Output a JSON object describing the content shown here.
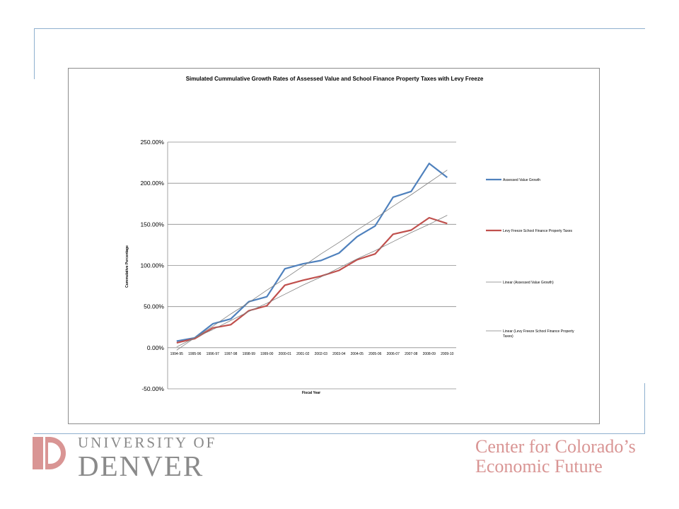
{
  "chart_data": {
    "type": "line",
    "title": "Simulated Cummulative Growth Rates of Assessed Value and School Finance Property Taxes with Levy Freeze",
    "xlabel": "Fiscal Year",
    "ylabel": "Cummulative Percentage",
    "categories": [
      "1994-95",
      "1995-96",
      "1996-97",
      "1997-98",
      "1998-99",
      "1999-00",
      "2000-01",
      "2001-02",
      "2002-03",
      "2003-04",
      "2004-05",
      "2005-06",
      "2006-07",
      "2007-08",
      "2008-09",
      "2009-10"
    ],
    "ylim": [
      -50,
      250
    ],
    "yticks": [
      -50,
      0,
      50,
      100,
      150,
      200,
      250
    ],
    "ytick_labels": [
      "-50.00%",
      "0.00%",
      "50.00%",
      "100.00%",
      "150.00%",
      "200.00%",
      "250.00%"
    ],
    "grid": true,
    "legend_position": "right",
    "series": [
      {
        "name": "Assessed Value Growth",
        "color": "#4f81bd",
        "kind": "data",
        "values": [
          8,
          12,
          29,
          35,
          56,
          62,
          96,
          102,
          106,
          115,
          135,
          148,
          183,
          190,
          224,
          207
        ]
      },
      {
        "name": "Levy Freeze School Finance Property Taxes",
        "color": "#c0504d",
        "kind": "data",
        "values": [
          6,
          11,
          24,
          28,
          45,
          51,
          76,
          82,
          87,
          94,
          107,
          114,
          138,
          143,
          158,
          151
        ]
      },
      {
        "name": "Linear (Assessed Value Growth)",
        "color": "#7f7f7f",
        "kind": "trend",
        "values": [
          -3,
          12,
          26,
          41,
          55,
          70,
          84,
          99,
          114,
          128,
          143,
          157,
          172,
          186,
          201,
          216
        ]
      },
      {
        "name": "Linear (Levy Freeze School Finance Property Taxes)",
        "color": "#7f7f7f",
        "kind": "trend",
        "values": [
          1,
          12,
          22,
          33,
          44,
          54,
          65,
          76,
          86,
          97,
          108,
          118,
          129,
          140,
          150,
          161
        ]
      }
    ]
  },
  "footer": {
    "university_line1": "UNIVERSITY OF",
    "university_line2": "DENVER",
    "center_line1": "Center for Colorado’s",
    "center_line2": "Economic Future"
  }
}
